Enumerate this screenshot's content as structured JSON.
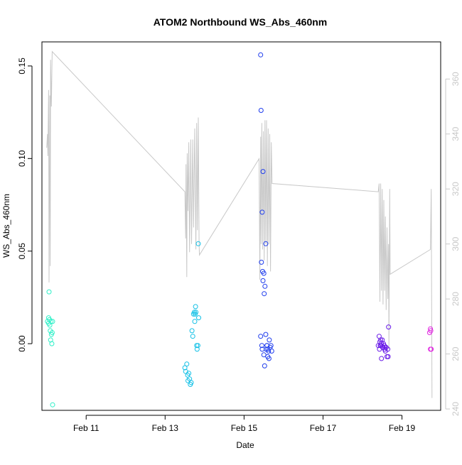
{
  "chart_data": {
    "type": "scatter",
    "title": "ATOM2 Northbound WS_Abs_460nm",
    "xlabel": "Date",
    "ylabel": "WS_Abs_460nm",
    "x_unit": "days",
    "x_ticks": [
      {
        "label": "Feb 11",
        "value": 11
      },
      {
        "label": "Feb 13",
        "value": 13
      },
      {
        "label": "Feb 15",
        "value": 15
      },
      {
        "label": "Feb 17",
        "value": 17
      },
      {
        "label": "Feb 19",
        "value": 19
      }
    ],
    "xlim": [
      9.88,
      19.98
    ],
    "ylim": [
      -0.036,
      0.163
    ],
    "y_ticks": [
      0.0,
      0.05,
      0.1,
      0.15
    ],
    "y_tick_labels": [
      "0.00",
      "0.05",
      "0.10",
      "0.15"
    ],
    "y2lim": [
      239.5,
      373.5
    ],
    "y2_ticks": [
      240,
      260,
      280,
      300,
      320,
      340,
      360
    ],
    "y2_tick_labels": [
      "240",
      "260",
      "280",
      "300",
      "320",
      "340",
      "360"
    ],
    "grid": false,
    "legend": "none",
    "colors": {
      "line": "#c8c8c8",
      "right_axis": "#c8c8c8",
      "left_axis": "#000000",
      "frame": "#000000"
    },
    "series": [
      {
        "color": "#2ff0c8",
        "points": [
          [
            10.02,
            0.012
          ],
          [
            10.05,
            0.014
          ],
          [
            10.05,
            0.011
          ],
          [
            10.07,
            0.013
          ],
          [
            10.06,
            0.028
          ],
          [
            10.08,
            0.01
          ],
          [
            10.09,
            0.007
          ],
          [
            10.1,
            0.002
          ],
          [
            10.11,
            0.012
          ],
          [
            10.12,
            0.005
          ],
          [
            10.13,
            0.0
          ],
          [
            10.14,
            0.006
          ],
          [
            10.15,
            0.012
          ],
          [
            10.15,
            -0.033
          ]
        ]
      },
      {
        "color": "#12c0e6",
        "points": [
          [
            13.5,
            -0.013
          ],
          [
            13.52,
            -0.015
          ],
          [
            13.55,
            -0.011
          ],
          [
            13.57,
            -0.017
          ],
          [
            13.58,
            -0.02
          ],
          [
            13.6,
            -0.016
          ],
          [
            13.62,
            -0.019
          ],
          [
            13.64,
            -0.022
          ],
          [
            13.66,
            -0.021
          ],
          [
            13.68,
            0.007
          ],
          [
            13.7,
            0.004
          ],
          [
            13.72,
            0.016
          ],
          [
            13.74,
            0.017
          ],
          [
            13.75,
            0.012
          ],
          [
            13.76,
            0.016
          ],
          [
            13.77,
            0.02
          ],
          [
            13.78,
            0.017
          ],
          [
            13.8,
            -0.001
          ],
          [
            13.81,
            -0.003
          ],
          [
            13.83,
            -0.001
          ],
          [
            13.85,
            0.014
          ],
          [
            13.84,
            0.054
          ]
        ]
      },
      {
        "color": "#1e3ced",
        "points": [
          [
            15.42,
            0.156
          ],
          [
            15.43,
            0.126
          ],
          [
            15.48,
            0.093
          ],
          [
            15.46,
            0.071
          ],
          [
            15.55,
            0.054
          ],
          [
            15.44,
            0.044
          ],
          [
            15.47,
            0.039
          ],
          [
            15.5,
            0.038
          ],
          [
            15.48,
            0.034
          ],
          [
            15.53,
            0.031
          ],
          [
            15.51,
            0.027
          ],
          [
            15.42,
            0.004
          ],
          [
            15.55,
            0.005
          ],
          [
            15.45,
            -0.001
          ],
          [
            15.46,
            -0.003
          ],
          [
            15.5,
            -0.006
          ],
          [
            15.52,
            -0.012
          ],
          [
            15.58,
            -0.001
          ],
          [
            15.6,
            -0.003
          ],
          [
            15.62,
            -0.004
          ],
          [
            15.6,
            -0.007
          ],
          [
            15.64,
            0.002
          ],
          [
            15.66,
            -0.002
          ],
          [
            15.68,
            -0.001
          ],
          [
            15.7,
            -0.004
          ],
          [
            15.63,
            -0.008
          ],
          [
            15.56,
            -0.003
          ],
          [
            15.58,
            -0.001
          ]
        ]
      },
      {
        "color": "#6a1ce8",
        "points": [
          [
            18.4,
            -0.001
          ],
          [
            18.42,
            0.004
          ],
          [
            18.44,
            0.001
          ],
          [
            18.46,
            0.002
          ],
          [
            18.47,
            -0.001
          ],
          [
            18.48,
            0.0
          ],
          [
            18.5,
            0.002
          ],
          [
            18.52,
            -0.002
          ],
          [
            18.53,
            0.0
          ],
          [
            18.55,
            -0.001
          ],
          [
            18.56,
            -0.003
          ],
          [
            18.58,
            -0.004
          ],
          [
            18.6,
            -0.002
          ],
          [
            18.62,
            -0.007
          ],
          [
            18.64,
            -0.003
          ],
          [
            18.66,
            0.009
          ],
          [
            18.65,
            -0.007
          ],
          [
            18.48,
            -0.008
          ],
          [
            18.57,
            -0.002
          ],
          [
            18.45,
            -0.001
          ],
          [
            18.51,
            -0.002
          ],
          [
            18.43,
            -0.003
          ]
        ]
      },
      {
        "color": "#e028e0",
        "points": [
          [
            19.7,
            0.006
          ],
          [
            19.72,
            0.008
          ],
          [
            19.73,
            0.007
          ],
          [
            19.72,
            -0.003
          ],
          [
            19.74,
            -0.003
          ]
        ]
      }
    ],
    "line_series": {
      "axis": "right",
      "points": [
        [
          10.0,
          335
        ],
        [
          10.02,
          340
        ],
        [
          10.03,
          332
        ],
        [
          10.05,
          356
        ],
        [
          10.06,
          286
        ],
        [
          10.08,
          354
        ],
        [
          10.09,
          292
        ],
        [
          10.1,
          367
        ],
        [
          10.12,
          350
        ],
        [
          10.14,
          370
        ],
        [
          13.5,
          319
        ],
        [
          13.52,
          302
        ],
        [
          13.53,
          329
        ],
        [
          13.55,
          288
        ],
        [
          13.56,
          333
        ],
        [
          13.58,
          312
        ],
        [
          13.6,
          337
        ],
        [
          13.62,
          297
        ],
        [
          13.65,
          338
        ],
        [
          13.67,
          300
        ],
        [
          13.7,
          338
        ],
        [
          13.72,
          306
        ],
        [
          13.75,
          342
        ],
        [
          13.78,
          298
        ],
        [
          13.8,
          344
        ],
        [
          13.82,
          305
        ],
        [
          13.84,
          346
        ],
        [
          13.86,
          300
        ],
        [
          13.87,
          296
        ],
        [
          15.38,
          331
        ],
        [
          15.4,
          287
        ],
        [
          15.42,
          339
        ],
        [
          15.43,
          300
        ],
        [
          15.45,
          344
        ],
        [
          15.47,
          298
        ],
        [
          15.49,
          341
        ],
        [
          15.51,
          294
        ],
        [
          15.53,
          345
        ],
        [
          15.55,
          300
        ],
        [
          15.57,
          345
        ],
        [
          15.59,
          292
        ],
        [
          15.61,
          342
        ],
        [
          15.63,
          300
        ],
        [
          15.65,
          340
        ],
        [
          15.67,
          290
        ],
        [
          15.69,
          337
        ],
        [
          15.71,
          322
        ],
        [
          18.4,
          319
        ],
        [
          18.42,
          322
        ],
        [
          18.44,
          279
        ],
        [
          18.46,
          322
        ],
        [
          18.48,
          283
        ],
        [
          18.5,
          320
        ],
        [
          18.52,
          278
        ],
        [
          18.54,
          316
        ],
        [
          18.56,
          283
        ],
        [
          18.58,
          310
        ],
        [
          18.6,
          276
        ],
        [
          18.62,
          306
        ],
        [
          18.64,
          280
        ],
        [
          18.66,
          300
        ],
        [
          18.67,
          262
        ],
        [
          18.69,
          320
        ],
        [
          18.7,
          289
        ],
        [
          19.72,
          298
        ],
        [
          19.74,
          320
        ],
        [
          19.76,
          244
        ]
      ]
    }
  }
}
